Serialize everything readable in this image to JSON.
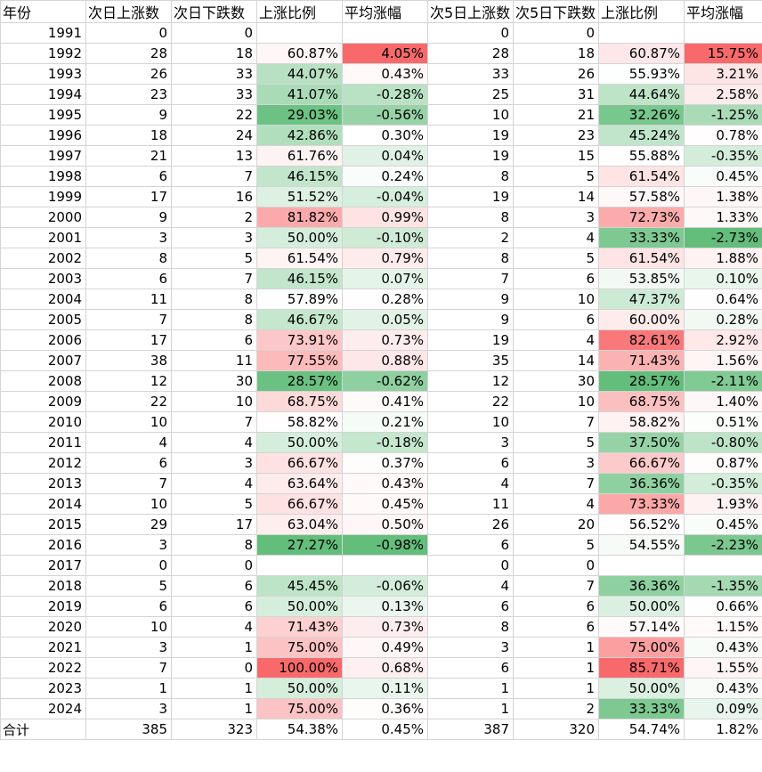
{
  "headers": [
    "年份",
    "次日上涨数",
    "次日下跌数",
    "上涨比例",
    "平均涨幅",
    "次5日上涨数",
    "次5日下跌数",
    "上涨比例",
    "平均涨幅"
  ],
  "rows": [
    [
      "1991",
      "0",
      "0",
      "",
      "",
      "0",
      "0",
      "",
      ""
    ],
    [
      "1992",
      "28",
      "18",
      "60.87%",
      "4.05%",
      "28",
      "18",
      "60.87%",
      "15.75%"
    ],
    [
      "1993",
      "26",
      "33",
      "44.07%",
      "0.43%",
      "33",
      "26",
      "55.93%",
      "3.21%"
    ],
    [
      "1994",
      "23",
      "33",
      "41.07%",
      "-0.28%",
      "25",
      "31",
      "44.64%",
      "2.58%"
    ],
    [
      "1995",
      "9",
      "22",
      "29.03%",
      "-0.56%",
      "10",
      "21",
      "32.26%",
      "-1.25%"
    ],
    [
      "1996",
      "18",
      "24",
      "42.86%",
      "0.30%",
      "19",
      "23",
      "45.24%",
      "0.78%"
    ],
    [
      "1997",
      "21",
      "13",
      "61.76%",
      "0.04%",
      "19",
      "15",
      "55.88%",
      "-0.35%"
    ],
    [
      "1998",
      "6",
      "7",
      "46.15%",
      "0.24%",
      "8",
      "5",
      "61.54%",
      "0.45%"
    ],
    [
      "1999",
      "17",
      "16",
      "51.52%",
      "-0.04%",
      "19",
      "14",
      "57.58%",
      "1.38%"
    ],
    [
      "2000",
      "9",
      "2",
      "81.82%",
      "0.99%",
      "8",
      "3",
      "72.73%",
      "1.33%"
    ],
    [
      "2001",
      "3",
      "3",
      "50.00%",
      "-0.10%",
      "2",
      "4",
      "33.33%",
      "-2.73%"
    ],
    [
      "2002",
      "8",
      "5",
      "61.54%",
      "0.79%",
      "8",
      "5",
      "61.54%",
      "1.88%"
    ],
    [
      "2003",
      "6",
      "7",
      "46.15%",
      "0.07%",
      "7",
      "6",
      "53.85%",
      "0.10%"
    ],
    [
      "2004",
      "11",
      "8",
      "57.89%",
      "0.28%",
      "9",
      "10",
      "47.37%",
      "0.64%"
    ],
    [
      "2005",
      "7",
      "8",
      "46.67%",
      "0.05%",
      "9",
      "6",
      "60.00%",
      "0.28%"
    ],
    [
      "2006",
      "17",
      "6",
      "73.91%",
      "0.73%",
      "19",
      "4",
      "82.61%",
      "2.92%"
    ],
    [
      "2007",
      "38",
      "11",
      "77.55%",
      "0.88%",
      "35",
      "14",
      "71.43%",
      "1.56%"
    ],
    [
      "2008",
      "12",
      "30",
      "28.57%",
      "-0.62%",
      "12",
      "30",
      "28.57%",
      "-2.11%"
    ],
    [
      "2009",
      "22",
      "10",
      "68.75%",
      "0.41%",
      "22",
      "10",
      "68.75%",
      "1.40%"
    ],
    [
      "2010",
      "10",
      "7",
      "58.82%",
      "0.21%",
      "10",
      "7",
      "58.82%",
      "0.51%"
    ],
    [
      "2011",
      "4",
      "4",
      "50.00%",
      "-0.18%",
      "3",
      "5",
      "37.50%",
      "-0.80%"
    ],
    [
      "2012",
      "6",
      "3",
      "66.67%",
      "0.37%",
      "6",
      "3",
      "66.67%",
      "0.87%"
    ],
    [
      "2013",
      "7",
      "4",
      "63.64%",
      "0.43%",
      "4",
      "7",
      "36.36%",
      "-0.35%"
    ],
    [
      "2014",
      "10",
      "5",
      "66.67%",
      "0.45%",
      "11",
      "4",
      "73.33%",
      "1.93%"
    ],
    [
      "2015",
      "29",
      "17",
      "63.04%",
      "0.50%",
      "26",
      "20",
      "56.52%",
      "0.45%"
    ],
    [
      "2016",
      "3",
      "8",
      "27.27%",
      "-0.98%",
      "6",
      "5",
      "54.55%",
      "-2.23%"
    ],
    [
      "2017",
      "0",
      "0",
      "",
      "",
      "0",
      "0",
      "",
      ""
    ],
    [
      "2018",
      "5",
      "6",
      "45.45%",
      "-0.06%",
      "4",
      "7",
      "36.36%",
      "-1.35%"
    ],
    [
      "2019",
      "6",
      "6",
      "50.00%",
      "0.13%",
      "6",
      "6",
      "50.00%",
      "0.66%"
    ],
    [
      "2020",
      "10",
      "4",
      "71.43%",
      "0.73%",
      "8",
      "6",
      "57.14%",
      "1.15%"
    ],
    [
      "2021",
      "3",
      "1",
      "75.00%",
      "0.49%",
      "3",
      "1",
      "75.00%",
      "0.43%"
    ],
    [
      "2022",
      "7",
      "0",
      "100.00%",
      "0.68%",
      "6",
      "1",
      "85.71%",
      "1.55%"
    ],
    [
      "2023",
      "1",
      "1",
      "50.00%",
      "0.11%",
      "1",
      "1",
      "50.00%",
      "0.43%"
    ],
    [
      "2024",
      "3",
      "1",
      "75.00%",
      "0.36%",
      "1",
      "2",
      "33.33%",
      "0.09%"
    ]
  ],
  "total": [
    "合计",
    "385",
    "323",
    "54.38%",
    "0.45%",
    "387",
    "320",
    "54.74%",
    "1.82%"
  ],
  "colors": {
    "red": "#f8696b",
    "green": "#63be7b",
    "white": "#ffffff",
    "grid": "#d4d4d4"
  }
}
